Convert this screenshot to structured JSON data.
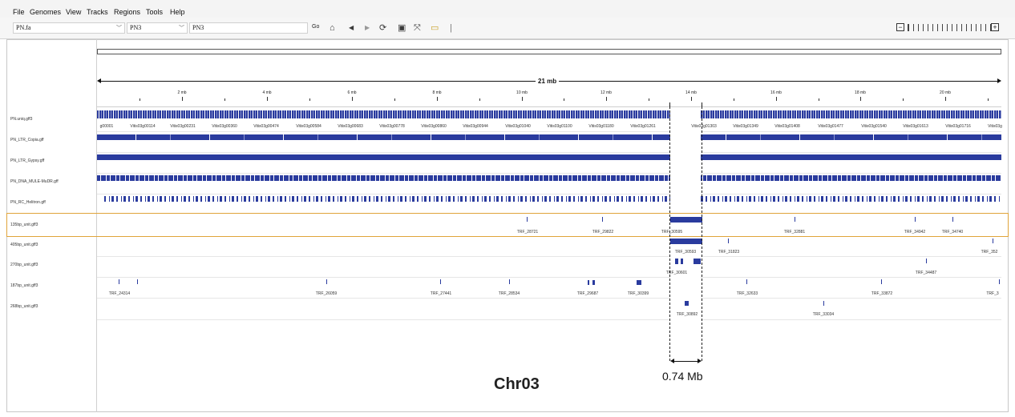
{
  "menu": [
    "File",
    "Genomes",
    "View",
    "Tracks",
    "Regions",
    "Tools",
    "Help"
  ],
  "toolbar": {
    "genome": "PN.fa",
    "chromosome": "PN3",
    "locus": "PN3",
    "go_label": "Go"
  },
  "ruler": {
    "span_label": "21 mb",
    "ticks": [
      "2 mb",
      "4 mb",
      "6 mb",
      "8 mb",
      "10 mb",
      "12 mb",
      "14 mb",
      "16 mb",
      "18 mb",
      "20 mb"
    ]
  },
  "tracks": [
    "PN.uniq.gff3",
    "PN_LTR_Copia.gff",
    "PN_LTR_Gypsy.gff",
    "PN_DNA_MULE-MuDR.gff",
    "PN_RC_Helitron.gff",
    "135bp_unit.gff3",
    "405bp_unit.gff3",
    "270bp_unit.gff3",
    "187bp_unit.gff3",
    "268bp_unit.gff3"
  ],
  "gene_labels": [
    "g00001",
    "Vitis03g00114",
    "Vitis03g00231",
    "Vitis03g00360",
    "Vitis03g00474",
    "Vitis03g00584",
    "Vitis03g00683",
    "Vitis03g00778",
    "Vitis03g00860",
    "Vitis03g00944",
    "Vitis03g01040",
    "Vitis03g01100",
    "Vitis03g01180",
    "Vitis03g01261",
    "Vitis03g01303",
    "Vitis03g01349",
    "Vitis03g01408",
    "Vitis03g01477",
    "Vitis03g01540",
    "Vitis03g01613",
    "Vitis03g01716",
    "Vitis03g"
  ],
  "unit_labels": {
    "t135": [
      "TRF_28721",
      "TRF_29822",
      "TRF_30595",
      "TRF_32881",
      "TRF_34942",
      "TRF_34740"
    ],
    "t405": [
      "TRF_30593",
      "TRF_31823",
      "TRF_352"
    ],
    "t270": [
      "TRF_30601",
      "TRF_34487"
    ],
    "t187": [
      "TRF_24314",
      "TRF_26059",
      "TRF_27441",
      "TRF_28534",
      "TRF_29687",
      "TRF_30399",
      "TRF_32633",
      "TRF_33872",
      "TRF_3"
    ],
    "t268": [
      "TRF_30892",
      "TRF_33034"
    ]
  },
  "annotations": {
    "gap_size": "0.74 Mb",
    "chromosome": "Chr03"
  },
  "colors": {
    "feature": "#2a3b9e",
    "selection_border": "#e0a43a"
  }
}
